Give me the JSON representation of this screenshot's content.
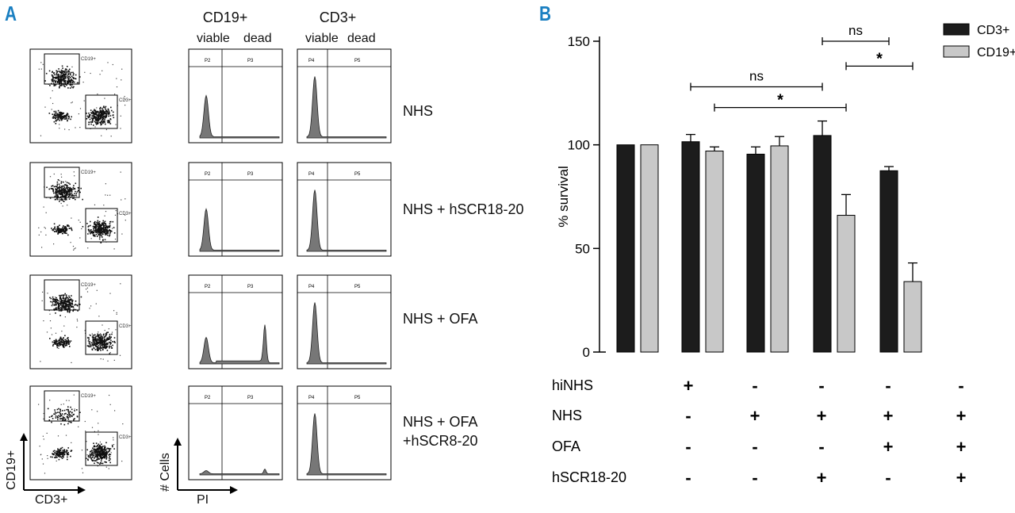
{
  "panel_a": {
    "letter": "A",
    "header_cd19": "CD19+",
    "header_cd3": "CD3+",
    "viable": "viable",
    "dead": "dead",
    "rows": [
      {
        "label": "NHS"
      },
      {
        "label": "NHS + hSCR18-20"
      },
      {
        "label": "NHS + OFA"
      },
      {
        "label_line1": "NHS + OFA",
        "label_line2": "+hSCR8-20"
      }
    ],
    "gate_cd19": "CD19+",
    "gate_cd3": "CD3+",
    "gate_p2": "P2",
    "gate_p3": "P3",
    "gate_p4": "P4",
    "gate_p5": "P5",
    "axis_y_scatter": "CD19+",
    "axis_x_scatter": "CD3+",
    "axis_y_hist": "# Cells",
    "axis_x_hist": "PI"
  },
  "panel_b": {
    "letter": "B",
    "colors": {
      "cd3": "#1c1c1c",
      "cd19": "#c8c8c8",
      "accent": "#1a7fc1"
    }
  },
  "chart_data": {
    "type": "bar",
    "title": "",
    "ylabel": "% survival",
    "xlabel": "",
    "ylim": [
      0,
      150
    ],
    "yticks": [
      0,
      50,
      100,
      150
    ],
    "legend": [
      "CD3+",
      "CD19+"
    ],
    "legend_position": "top-right",
    "groups": 5,
    "series": [
      {
        "name": "CD3+",
        "values": [
          100,
          101.5,
          95.5,
          104.5,
          87.5
        ],
        "errors": [
          0,
          3.5,
          3.5,
          7,
          2
        ]
      },
      {
        "name": "CD19+",
        "values": [
          100,
          97,
          99.5,
          66,
          34
        ],
        "errors": [
          0,
          2,
          4.5,
          10,
          9
        ]
      }
    ],
    "significance": [
      {
        "from": "group2-CD3+",
        "to": "group4-CD3+",
        "label": "ns"
      },
      {
        "from": "group2-CD19+",
        "to": "group4-CD19+",
        "label": "*"
      },
      {
        "from": "group4-CD3+",
        "to": "group5-CD3+",
        "label": "ns"
      },
      {
        "from": "group4-CD19+",
        "to": "group5-CD19+",
        "label": "*"
      }
    ],
    "conditions": [
      {
        "name": "hiNHS",
        "signs": [
          "",
          "+",
          "-",
          "-",
          "-",
          "-"
        ]
      },
      {
        "name": "NHS",
        "signs": [
          "",
          "-",
          "+",
          "+",
          "+",
          "+"
        ]
      },
      {
        "name": "OFA",
        "signs": [
          "",
          "-",
          "-",
          "-",
          "+",
          "+"
        ]
      },
      {
        "name": "hSCR18-20",
        "signs": [
          "",
          "-",
          "-",
          "+",
          "-",
          "+"
        ]
      }
    ]
  }
}
